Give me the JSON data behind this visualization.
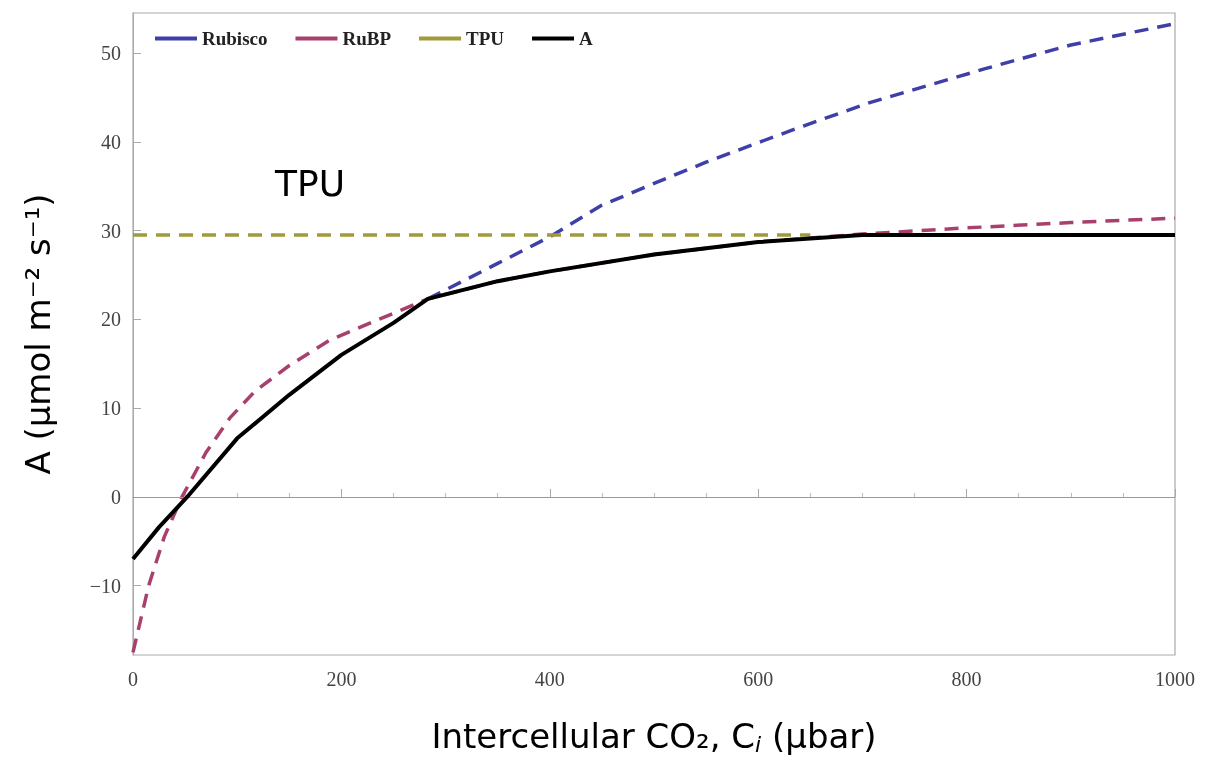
{
  "chart_data": {
    "type": "line",
    "xlabel": "Intercellular CO₂, C$_{i}$ (μbar)",
    "ylabel": "A (μmol m⁻² s⁻¹)",
    "xlim": [
      0,
      1000
    ],
    "xticks": [
      0,
      200,
      400,
      600,
      800,
      1000
    ],
    "ylim": [
      -17.8,
      54.5
    ],
    "yticks": [
      -10,
      0,
      10,
      20,
      30,
      40,
      50
    ],
    "grid": false,
    "legend": "top left",
    "marker": "none",
    "ref_lines": [
      {
        "axis": "y",
        "value": 0,
        "color": "#9a9a9a",
        "line_style": "solid"
      }
    ],
    "annotations": [
      "TPU"
    ],
    "series": [
      {
        "name": "Rubisco",
        "color": "#3f3fa8",
        "line_style": "dashed",
        "x": [
          283,
          350,
          400,
          449,
          500,
          550,
          600,
          644,
          707,
          817,
          900,
          1000
        ],
        "values": [
          22.3,
          26.3,
          29.3,
          32.8,
          35.3,
          37.7,
          39.9,
          41.8,
          44.4,
          48.2,
          50.9,
          53.3
        ]
      },
      {
        "name": "RuBP",
        "color": "#a8406e",
        "line_style": "dashed",
        "x": [
          0,
          15,
          30,
          47,
          70,
          93,
          117,
          150,
          188,
          240,
          283,
          350,
          400,
          500,
          600,
          700,
          800,
          900,
          1000
        ],
        "values": [
          -17.5,
          -10,
          -4.5,
          0,
          5,
          8.9,
          11.9,
          14.8,
          17.6,
          20.2,
          22.3,
          24.3,
          25.4,
          27.3,
          28.7,
          29.6,
          30.3,
          30.9,
          31.4
        ]
      },
      {
        "name": "TPU",
        "color": "#a09a3a",
        "line_style": "dashed",
        "x": [
          0,
          650
        ],
        "values": [
          29.5,
          29.5
        ]
      },
      {
        "name": "A",
        "color": "#000000",
        "line_style": "solid",
        "x": [
          0,
          25,
          52,
          100,
          150,
          200,
          250,
          283,
          350,
          400,
          500,
          600,
          700,
          800,
          900,
          1000
        ],
        "values": [
          -7,
          -3.4,
          0,
          6.6,
          11.5,
          16,
          19.6,
          22.3,
          24.3,
          25.4,
          27.3,
          28.7,
          29.5,
          29.5,
          29.5,
          29.5
        ]
      }
    ]
  }
}
